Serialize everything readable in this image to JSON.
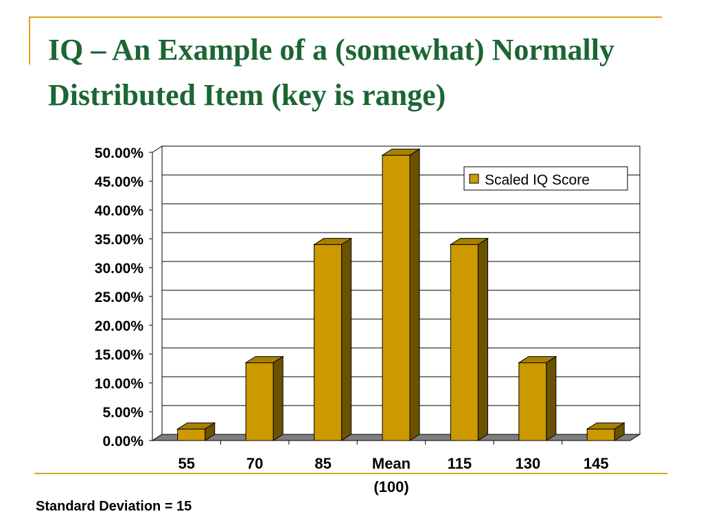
{
  "slide": {
    "title": "IQ – An Example of a (somewhat) Normally Distributed Item (key is range)",
    "footnote": "Standard Deviation = 15"
  },
  "colors": {
    "title": "#1b6634",
    "accent_line": "#d9a21b",
    "bar_front": "#cc9a00",
    "bar_side": "#6b5200",
    "bar_top": "#a88000",
    "floor": "#7f7f7f"
  },
  "chart_data": {
    "type": "bar",
    "categories": [
      "55",
      "70",
      "85",
      "Mean (100)",
      "115",
      "130",
      "145"
    ],
    "series": [
      {
        "name": "Scaled IQ Score",
        "values": [
          0.02,
          0.135,
          0.34,
          0.495,
          0.34,
          0.135,
          0.02
        ]
      }
    ],
    "ylim": [
      0,
      0.5
    ],
    "yticks": [
      "0.00%",
      "5.00%",
      "10.00%",
      "15.00%",
      "20.00%",
      "25.00%",
      "30.00%",
      "35.00%",
      "40.00%",
      "45.00%",
      "50.00%"
    ],
    "xlabel": "",
    "ylabel": "",
    "grid": true,
    "legend": "top-right",
    "style": "3d-column"
  }
}
